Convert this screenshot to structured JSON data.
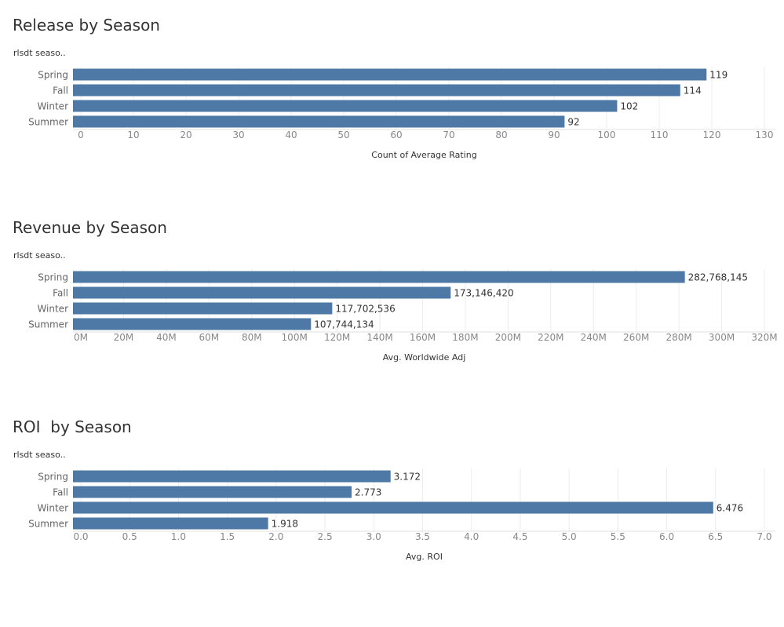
{
  "colors": {
    "bar": "#4e79a7",
    "grid": "#ececec",
    "axis_text": "#888888",
    "label_text": "#333333"
  },
  "chart_data": [
    {
      "type": "bar",
      "orientation": "horizontal",
      "title": "Release by Season",
      "row_header": "rlsdt seaso..",
      "categories": [
        "Spring",
        "Fall",
        "Winter",
        "Summer"
      ],
      "values": [
        119,
        114,
        102,
        92
      ],
      "value_labels": [
        "119",
        "114",
        "102",
        "92"
      ],
      "xlabel": "Count of Average Rating",
      "xlim": [
        0,
        130
      ],
      "ticks": [
        0,
        10,
        20,
        30,
        40,
        50,
        60,
        70,
        80,
        90,
        100,
        110,
        120,
        130
      ],
      "tick_labels": [
        "0",
        "10",
        "20",
        "30",
        "40",
        "50",
        "60",
        "70",
        "80",
        "90",
        "100",
        "110",
        "120",
        "130"
      ],
      "grid": true
    },
    {
      "type": "bar",
      "orientation": "horizontal",
      "title": "Revenue by Season",
      "row_header": "rlsdt seaso..",
      "categories": [
        "Spring",
        "Fall",
        "Winter",
        "Summer"
      ],
      "values": [
        282768145,
        173146420,
        117702536,
        107744134
      ],
      "value_labels": [
        "282,768,145",
        "173,146,420",
        "117,702,536",
        "107,744,134"
      ],
      "xlabel": "Avg. Worldwide Adj",
      "xlim": [
        0,
        320000000
      ],
      "ticks": [
        0,
        20000000,
        40000000,
        60000000,
        80000000,
        100000000,
        120000000,
        140000000,
        160000000,
        180000000,
        200000000,
        220000000,
        240000000,
        260000000,
        280000000,
        300000000,
        320000000
      ],
      "tick_labels": [
        "0M",
        "20M",
        "40M",
        "60M",
        "80M",
        "100M",
        "120M",
        "140M",
        "160M",
        "180M",
        "200M",
        "220M",
        "240M",
        "260M",
        "280M",
        "300M",
        "320M"
      ],
      "grid": true
    },
    {
      "type": "bar",
      "orientation": "horizontal",
      "title": "ROI  by Season",
      "row_header": "rlsdt seaso..",
      "categories": [
        "Spring",
        "Fall",
        "Winter",
        "Summer"
      ],
      "values": [
        3.172,
        2.773,
        6.476,
        1.918
      ],
      "value_labels": [
        "3.172",
        "2.773",
        "6.476",
        "1.918"
      ],
      "xlabel": "Avg. ROI",
      "xlim": [
        0,
        7
      ],
      "ticks": [
        0,
        0.5,
        1,
        1.5,
        2,
        2.5,
        3,
        3.5,
        4,
        4.5,
        5,
        5.5,
        6,
        6.5,
        7
      ],
      "tick_labels": [
        "0.0",
        "0.5",
        "1.0",
        "1.5",
        "2.0",
        "2.5",
        "3.0",
        "3.5",
        "4.0",
        "4.5",
        "5.0",
        "5.5",
        "6.0",
        "6.5",
        "7.0"
      ],
      "grid": true
    }
  ]
}
